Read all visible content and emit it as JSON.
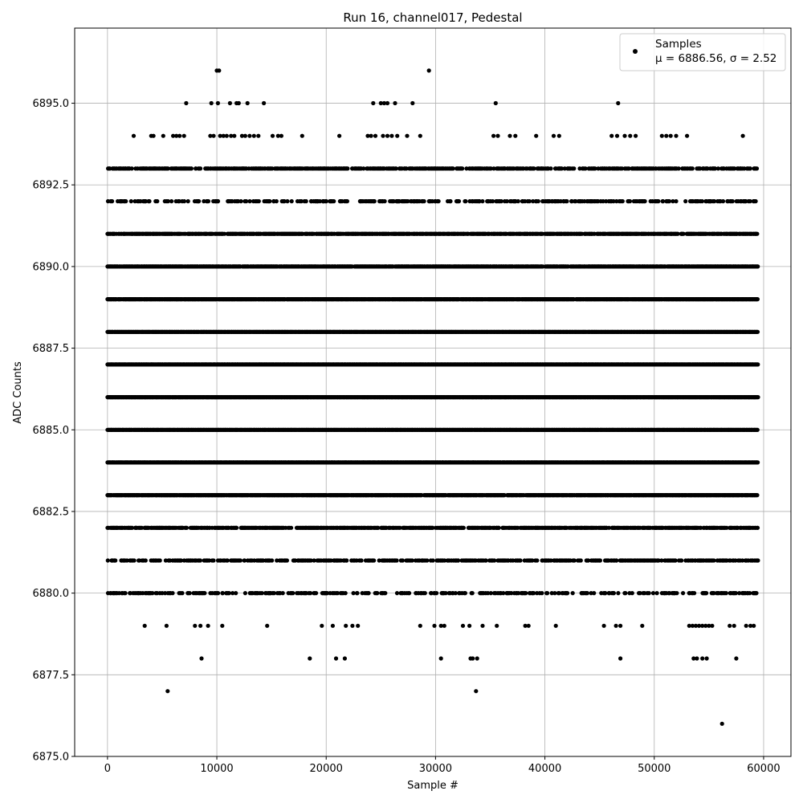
{
  "chart_data": {
    "type": "scatter",
    "title": "Run 16, channel017, Pedestal",
    "xlabel": "Sample #",
    "ylabel": "ADC Counts",
    "xlim": [
      -3000,
      62500
    ],
    "ylim": [
      6875.0,
      6897.3
    ],
    "x_ticks": [
      0,
      10000,
      20000,
      30000,
      40000,
      50000,
      60000
    ],
    "x_tick_labels": [
      "0",
      "10000",
      "20000",
      "30000",
      "40000",
      "50000",
      "60000"
    ],
    "y_ticks": [
      6875.0,
      6877.5,
      6880.0,
      6882.5,
      6885.0,
      6887.5,
      6890.0,
      6892.5,
      6895.0
    ],
    "y_tick_labels": [
      "6875.0",
      "6877.5",
      "6880.0",
      "6882.5",
      "6885.0",
      "6887.5",
      "6890.0",
      "6892.5",
      "6895.0"
    ],
    "grid": true,
    "legend": {
      "placement": "top-right",
      "entries": [
        {
          "line1": "Samples",
          "line2": "μ = 6886.56, σ = 2.52"
        }
      ]
    },
    "marker_color": "#000000",
    "sample_count_max": 59500,
    "series": [
      {
        "name": "Samples",
        "dense_levels": [
          {
            "y": 6893,
            "density": 0.55
          },
          {
            "y": 6892,
            "density": 0.32
          },
          {
            "y": 6891,
            "density": 0.8
          },
          {
            "y": 6890,
            "density": 0.88
          },
          {
            "y": 6889,
            "density": 0.97
          },
          {
            "y": 6888,
            "density": 1.0
          },
          {
            "y": 6887,
            "density": 1.0
          },
          {
            "y": 6886,
            "density": 1.0
          },
          {
            "y": 6885,
            "density": 1.0
          },
          {
            "y": 6884,
            "density": 1.0
          },
          {
            "y": 6883,
            "density": 0.92
          },
          {
            "y": 6882,
            "density": 0.65
          },
          {
            "y": 6881,
            "density": 0.45
          },
          {
            "y": 6880,
            "density": 0.3
          }
        ],
        "points": [
          [
            10000,
            6896
          ],
          [
            10200,
            6896
          ],
          [
            29400,
            6896
          ],
          [
            7200,
            6895
          ],
          [
            9500,
            6895
          ],
          [
            10100,
            6895
          ],
          [
            11200,
            6895
          ],
          [
            11800,
            6895
          ],
          [
            12000,
            6895
          ],
          [
            12800,
            6895
          ],
          [
            14300,
            6895
          ],
          [
            24300,
            6895
          ],
          [
            25000,
            6895
          ],
          [
            25300,
            6895
          ],
          [
            25600,
            6895
          ],
          [
            26300,
            6895
          ],
          [
            27900,
            6895
          ],
          [
            35500,
            6895
          ],
          [
            46700,
            6895
          ],
          [
            2400,
            6894
          ],
          [
            4000,
            6894
          ],
          [
            4200,
            6894
          ],
          [
            5100,
            6894
          ],
          [
            6000,
            6894
          ],
          [
            6300,
            6894
          ],
          [
            6600,
            6894
          ],
          [
            7000,
            6894
          ],
          [
            9400,
            6894
          ],
          [
            9700,
            6894
          ],
          [
            10300,
            6894
          ],
          [
            10600,
            6894
          ],
          [
            10900,
            6894
          ],
          [
            11300,
            6894
          ],
          [
            11600,
            6894
          ],
          [
            12300,
            6894
          ],
          [
            12600,
            6894
          ],
          [
            13000,
            6894
          ],
          [
            13400,
            6894
          ],
          [
            13800,
            6894
          ],
          [
            15100,
            6894
          ],
          [
            15600,
            6894
          ],
          [
            15900,
            6894
          ],
          [
            17800,
            6894
          ],
          [
            21200,
            6894
          ],
          [
            23800,
            6894
          ],
          [
            24100,
            6894
          ],
          [
            24500,
            6894
          ],
          [
            25200,
            6894
          ],
          [
            25600,
            6894
          ],
          [
            26000,
            6894
          ],
          [
            26500,
            6894
          ],
          [
            27400,
            6894
          ],
          [
            28600,
            6894
          ],
          [
            35300,
            6894
          ],
          [
            35700,
            6894
          ],
          [
            36800,
            6894
          ],
          [
            37300,
            6894
          ],
          [
            39200,
            6894
          ],
          [
            40800,
            6894
          ],
          [
            41300,
            6894
          ],
          [
            46100,
            6894
          ],
          [
            46600,
            6894
          ],
          [
            47300,
            6894
          ],
          [
            47800,
            6894
          ],
          [
            48300,
            6894
          ],
          [
            50700,
            6894
          ],
          [
            51100,
            6894
          ],
          [
            51500,
            6894
          ],
          [
            52000,
            6894
          ],
          [
            53000,
            6894
          ],
          [
            58100,
            6894
          ],
          [
            3400,
            6879
          ],
          [
            5400,
            6879
          ],
          [
            8000,
            6879
          ],
          [
            8500,
            6879
          ],
          [
            9200,
            6879
          ],
          [
            10500,
            6879
          ],
          [
            14600,
            6879
          ],
          [
            19600,
            6879
          ],
          [
            20600,
            6879
          ],
          [
            21800,
            6879
          ],
          [
            22400,
            6879
          ],
          [
            22900,
            6879
          ],
          [
            28600,
            6879
          ],
          [
            29900,
            6879
          ],
          [
            30500,
            6879
          ],
          [
            30800,
            6879
          ],
          [
            32500,
            6879
          ],
          [
            33100,
            6879
          ],
          [
            34300,
            6879
          ],
          [
            35600,
            6879
          ],
          [
            38200,
            6879
          ],
          [
            38500,
            6879
          ],
          [
            41000,
            6879
          ],
          [
            45400,
            6879
          ],
          [
            46500,
            6879
          ],
          [
            46900,
            6879
          ],
          [
            48900,
            6879
          ],
          [
            53200,
            6879
          ],
          [
            53500,
            6879
          ],
          [
            53800,
            6879
          ],
          [
            54100,
            6879
          ],
          [
            54400,
            6879
          ],
          [
            54700,
            6879
          ],
          [
            55000,
            6879
          ],
          [
            55300,
            6879
          ],
          [
            56900,
            6879
          ],
          [
            57300,
            6879
          ],
          [
            58400,
            6879
          ],
          [
            58800,
            6879
          ],
          [
            59100,
            6879
          ],
          [
            8600,
            6878
          ],
          [
            18500,
            6878
          ],
          [
            20900,
            6878
          ],
          [
            21700,
            6878
          ],
          [
            30500,
            6878
          ],
          [
            33200,
            6878
          ],
          [
            33400,
            6878
          ],
          [
            33800,
            6878
          ],
          [
            46900,
            6878
          ],
          [
            53600,
            6878
          ],
          [
            53900,
            6878
          ],
          [
            54400,
            6878
          ],
          [
            54800,
            6878
          ],
          [
            57500,
            6878
          ],
          [
            5500,
            6877
          ],
          [
            33700,
            6877
          ],
          [
            56200,
            6876
          ]
        ]
      }
    ]
  }
}
